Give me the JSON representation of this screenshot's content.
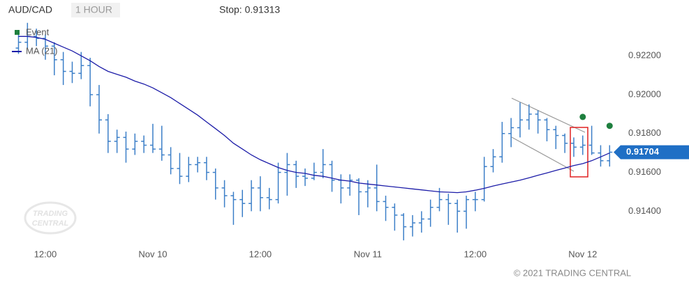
{
  "header": {
    "symbol": "AUD/CAD",
    "interval": "1 HOUR",
    "stop": "Stop: 0.91313"
  },
  "chart_data": {
    "type": "ohlc",
    "categories": [
      null,
      null,
      null,
      "12:00",
      null,
      null,
      null,
      null,
      null,
      null,
      null,
      null,
      null,
      null,
      null,
      "Nov 10",
      null,
      null,
      null,
      null,
      null,
      null,
      null,
      null,
      null,
      null,
      null,
      "12:00",
      null,
      null,
      null,
      null,
      null,
      null,
      null,
      null,
      null,
      null,
      null,
      "Nov 11",
      null,
      null,
      null,
      null,
      null,
      null,
      null,
      null,
      null,
      null,
      null,
      "12:00",
      null,
      null,
      null,
      null,
      null,
      null,
      null,
      null,
      null,
      null,
      null,
      "Nov 12",
      null,
      null,
      null
    ],
    "open": [
      0.9224,
      0.9227,
      0.923,
      0.9229,
      0.9225,
      0.9218,
      0.9212,
      0.9211,
      0.9215,
      0.92,
      0.9187,
      0.9176,
      0.9178,
      0.9172,
      0.9176,
      0.9174,
      0.9172,
      0.9169,
      0.9162,
      0.9158,
      0.9164,
      0.9165,
      0.916,
      0.9152,
      0.9148,
      0.9146,
      0.9144,
      0.9152,
      0.9147,
      0.9146,
      0.916,
      0.9164,
      0.9158,
      0.9157,
      0.916,
      0.9164,
      0.9156,
      0.9152,
      0.9156,
      0.915,
      0.9152,
      0.9145,
      0.9142,
      0.9138,
      0.9132,
      0.9134,
      0.9136,
      0.9142,
      0.9146,
      0.9144,
      0.914,
      0.9146,
      0.9146,
      0.9163,
      0.9168,
      0.918,
      0.9183,
      0.9187,
      0.919,
      0.9187,
      0.9182,
      0.9179,
      0.9175,
      0.9173,
      0.9174,
      0.917,
      0.9166
    ],
    "high": [
      0.9233,
      0.9237,
      0.9234,
      0.9231,
      0.9227,
      0.9222,
      0.9217,
      0.9222,
      0.9219,
      0.9205,
      0.919,
      0.9182,
      0.9181,
      0.918,
      0.9179,
      0.9185,
      0.9184,
      0.9173,
      0.917,
      0.9168,
      0.9168,
      0.9168,
      0.9162,
      0.9156,
      0.915,
      0.9151,
      0.9156,
      0.9158,
      0.9152,
      0.9165,
      0.917,
      0.9166,
      0.9162,
      0.9165,
      0.9172,
      0.9166,
      0.9159,
      0.9159,
      0.9157,
      0.9156,
      0.9164,
      0.9148,
      0.9144,
      0.9139,
      0.9138,
      0.914,
      0.9146,
      0.9152,
      0.9149,
      0.9146,
      0.9148,
      0.915,
      0.9168,
      0.9172,
      0.9186,
      0.9188,
      0.9196,
      0.9195,
      0.9192,
      0.9188,
      0.9184,
      0.918,
      0.9178,
      0.9179,
      0.9184,
      0.9174,
      0.9174
    ],
    "low": [
      0.9221,
      0.9224,
      0.9225,
      0.9218,
      0.921,
      0.9205,
      0.9206,
      0.9208,
      0.9194,
      0.918,
      0.917,
      0.917,
      0.9165,
      0.9169,
      0.917,
      0.917,
      0.9166,
      0.9159,
      0.9154,
      0.9155,
      0.916,
      0.9156,
      0.9146,
      0.9142,
      0.9133,
      0.9137,
      0.914,
      0.914,
      0.9141,
      0.9144,
      0.9148,
      0.9152,
      0.9153,
      0.9156,
      0.9157,
      0.915,
      0.9144,
      0.9148,
      0.9138,
      0.9142,
      0.914,
      0.9135,
      0.913,
      0.9125,
      0.9127,
      0.9129,
      0.9132,
      0.914,
      0.9133,
      0.9129,
      0.9131,
      0.914,
      0.9145,
      0.916,
      0.9165,
      0.9173,
      0.9178,
      0.9182,
      0.918,
      0.9176,
      0.9172,
      0.917,
      0.9168,
      0.9169,
      0.9169,
      0.9163,
      0.9163
    ],
    "close": [
      0.9227,
      0.923,
      0.9229,
      0.9225,
      0.9218,
      0.9212,
      0.9211,
      0.9215,
      0.92,
      0.9187,
      0.9176,
      0.9178,
      0.9172,
      0.9176,
      0.9174,
      0.9172,
      0.9169,
      0.9162,
      0.9158,
      0.9164,
      0.9165,
      0.916,
      0.9152,
      0.9148,
      0.9146,
      0.9144,
      0.9152,
      0.9147,
      0.9146,
      0.916,
      0.9164,
      0.9158,
      0.9157,
      0.916,
      0.9164,
      0.9156,
      0.9152,
      0.9156,
      0.915,
      0.9152,
      0.9145,
      0.9142,
      0.9138,
      0.9132,
      0.9134,
      0.9136,
      0.9142,
      0.9146,
      0.9144,
      0.914,
      0.9146,
      0.9146,
      0.9163,
      0.9168,
      0.918,
      0.9183,
      0.9187,
      0.919,
      0.9187,
      0.9182,
      0.9179,
      0.9175,
      0.9173,
      0.9174,
      0.917,
      0.9166,
      0.91704
    ],
    "color": "#3c7fc8",
    "series": [
      {
        "name": "Event",
        "color": "#1e7f3e",
        "values": [
          null,
          null,
          null,
          null,
          null,
          null,
          null,
          null,
          null,
          null,
          null,
          null,
          null,
          null,
          null,
          null,
          null,
          null,
          null,
          null,
          null,
          null,
          null,
          null,
          null,
          null,
          null,
          null,
          null,
          null,
          null,
          null,
          null,
          null,
          null,
          null,
          null,
          null,
          null,
          null,
          null,
          null,
          null,
          null,
          null,
          null,
          null,
          null,
          null,
          null,
          null,
          null,
          null,
          null,
          null,
          null,
          null,
          null,
          null,
          null,
          null,
          null,
          null,
          0.91857,
          null,
          null,
          0.91811
        ]
      },
      {
        "name": "MA (21)",
        "color": "#1c1ca8",
        "values": [
          0.923,
          0.923,
          0.92295,
          0.92285,
          0.92265,
          0.92245,
          0.92225,
          0.922,
          0.92175,
          0.92145,
          0.9212,
          0.92105,
          0.9209,
          0.9207,
          0.92055,
          0.92035,
          0.9201,
          0.91985,
          0.91955,
          0.91925,
          0.91895,
          0.9186,
          0.91825,
          0.9179,
          0.9175,
          0.9172,
          0.9169,
          0.91665,
          0.91645,
          0.91625,
          0.9161,
          0.916,
          0.91595,
          0.91585,
          0.9158,
          0.9157,
          0.9156,
          0.91555,
          0.91545,
          0.9154,
          0.91535,
          0.9153,
          0.91525,
          0.9152,
          0.91515,
          0.9151,
          0.91505,
          0.915,
          0.91498,
          0.91496,
          0.915,
          0.91508,
          0.91518,
          0.9153,
          0.9154,
          0.9155,
          0.9156,
          0.91572,
          0.91585,
          0.91597,
          0.9161,
          0.91622,
          0.91635,
          0.91645,
          0.9166,
          0.9168,
          0.917
        ]
      }
    ],
    "ylim": [
      0.9124,
      0.9238
    ],
    "yticks": [
      {
        "value": 0.914,
        "label": "0.91400"
      },
      {
        "value": 0.916,
        "label": "0.91600"
      },
      {
        "value": 0.918,
        "label": "0.91800"
      },
      {
        "value": 0.92,
        "label": "0.92000"
      },
      {
        "value": 0.922,
        "label": "0.92200"
      }
    ],
    "grid": false
  },
  "watermark": [
    "TRADING",
    "CENTRAL"
  ],
  "footer": "© 2021 TRADING CENTRAL"
}
